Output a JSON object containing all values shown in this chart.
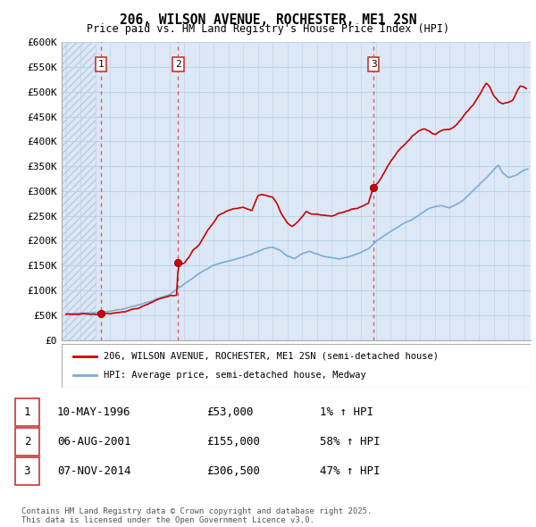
{
  "title": "206, WILSON AVENUE, ROCHESTER, ME1 2SN",
  "subtitle": "Price paid vs. HM Land Registry's House Price Index (HPI)",
  "property_label": "206, WILSON AVENUE, ROCHESTER, ME1 2SN (semi-detached house)",
  "hpi_label": "HPI: Average price, semi-detached house, Medway",
  "footer": "Contains HM Land Registry data © Crown copyright and database right 2025.\nThis data is licensed under the Open Government Licence v3.0.",
  "transactions": [
    {
      "num": 1,
      "date": "10-MAY-1996",
      "price": "£53,000",
      "change": "1% ↑ HPI",
      "year": 1996.37
    },
    {
      "num": 2,
      "date": "06-AUG-2001",
      "price": "£155,000",
      "change": "58% ↑ HPI",
      "year": 2001.6
    },
    {
      "num": 3,
      "date": "07-NOV-2014",
      "price": "£306,500",
      "change": "47% ↑ HPI",
      "year": 2014.85
    }
  ],
  "property_color": "#cc0000",
  "hpi_color": "#7aabdb",
  "vline_color": "#e05050",
  "marker_color": "#cc0000",
  "marker_edge": "#800000",
  "ylim": [
    0,
    600000
  ],
  "yticks": [
    0,
    50000,
    100000,
    150000,
    200000,
    250000,
    300000,
    350000,
    400000,
    450000,
    500000,
    550000,
    600000
  ],
  "ytick_labels": [
    "£0",
    "£50K",
    "£100K",
    "£150K",
    "£200K",
    "£250K",
    "£300K",
    "£350K",
    "£400K",
    "£450K",
    "£500K",
    "£550K",
    "£600K"
  ],
  "xlim_start": 1993.7,
  "xlim_end": 2025.5,
  "sale_prices": [
    53000,
    155000,
    306500
  ],
  "sale_years": [
    1996.37,
    2001.6,
    2014.85
  ],
  "bg_color": "#dce8f5",
  "grid_color": "#c0d4e8",
  "hatch_color": "#c8d8ec"
}
